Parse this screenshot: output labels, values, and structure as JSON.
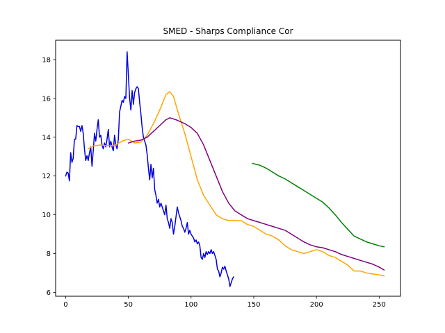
{
  "chart_data": {
    "type": "line",
    "title": "SMED - Sharps Compliance Cor",
    "xlabel": "",
    "ylabel": "",
    "xlim": [
      -8,
      267
    ],
    "ylim": [
      5.8,
      19.0
    ],
    "grid": false,
    "x_ticks": [
      0,
      50,
      100,
      150,
      200,
      250
    ],
    "y_ticks": [
      6,
      8,
      10,
      12,
      14,
      16,
      18
    ],
    "series": [
      {
        "color": "#0000dd",
        "points": [
          [
            0,
            12.0
          ],
          [
            1,
            12.2
          ],
          [
            2,
            12.15
          ],
          [
            3,
            11.75
          ],
          [
            4,
            13.2
          ],
          [
            5,
            12.7
          ],
          [
            6,
            12.9
          ],
          [
            7,
            13.9
          ],
          [
            8,
            13.9
          ],
          [
            9,
            14.6
          ],
          [
            10,
            14.55
          ],
          [
            11,
            14.55
          ],
          [
            12,
            14.3
          ],
          [
            13,
            14.6
          ],
          [
            14,
            14.2
          ],
          [
            15,
            13.4
          ],
          [
            16,
            12.8
          ],
          [
            17,
            13.05
          ],
          [
            18,
            12.8
          ],
          [
            19,
            13.2
          ],
          [
            20,
            13.5
          ],
          [
            21,
            12.5
          ],
          [
            22,
            13.3
          ],
          [
            23,
            14.2
          ],
          [
            24,
            13.8
          ],
          [
            25,
            14.4
          ],
          [
            26,
            14.9
          ],
          [
            27,
            14.0
          ],
          [
            28,
            14.1
          ],
          [
            29,
            13.6
          ],
          [
            30,
            13.4
          ],
          [
            31,
            13.7
          ],
          [
            32,
            13.5
          ],
          [
            33,
            13.9
          ],
          [
            34,
            14.4
          ],
          [
            35,
            13.5
          ],
          [
            36,
            13.8
          ],
          [
            37,
            13.5
          ],
          [
            38,
            13.3
          ],
          [
            39,
            14.1
          ],
          [
            40,
            13.6
          ],
          [
            41,
            13.4
          ],
          [
            42,
            13.9
          ],
          [
            43,
            15.3
          ],
          [
            44,
            15.6
          ],
          [
            45,
            15.9
          ],
          [
            46,
            15.8
          ],
          [
            47,
            16.1
          ],
          [
            48,
            16.0
          ],
          [
            49,
            18.4
          ],
          [
            50,
            17.2
          ],
          [
            51,
            16.0
          ],
          [
            52,
            15.4
          ],
          [
            53,
            16.4
          ],
          [
            54,
            15.7
          ],
          [
            55,
            16.3
          ],
          [
            56,
            16.5
          ],
          [
            57,
            16.6
          ],
          [
            58,
            16.5
          ],
          [
            59,
            15.8
          ],
          [
            60,
            15.2
          ],
          [
            61,
            14.5
          ],
          [
            62,
            14.0
          ],
          [
            63,
            13.8
          ],
          [
            64,
            13.6
          ],
          [
            65,
            13.1
          ],
          [
            66,
            12.4
          ],
          [
            67,
            11.8
          ],
          [
            68,
            12.6
          ],
          [
            69,
            11.9
          ],
          [
            70,
            12.4
          ],
          [
            71,
            11.3
          ],
          [
            72,
            11.0
          ],
          [
            73,
            10.6
          ],
          [
            74,
            10.8
          ],
          [
            75,
            10.4
          ],
          [
            76,
            10.6
          ],
          [
            77,
            10.4
          ],
          [
            78,
            10.2
          ],
          [
            79,
            10.0
          ],
          [
            80,
            10.5
          ],
          [
            81,
            9.8
          ],
          [
            82,
            9.6
          ],
          [
            83,
            9.3
          ],
          [
            84,
            9.8
          ],
          [
            85,
            9.6
          ],
          [
            86,
            9.0
          ],
          [
            87,
            9.4
          ],
          [
            88,
            9.9
          ],
          [
            89,
            10.4
          ],
          [
            90,
            10.1
          ],
          [
            91,
            9.9
          ],
          [
            92,
            9.7
          ],
          [
            93,
            9.4
          ],
          [
            94,
            9.3
          ],
          [
            95,
            9.1
          ],
          [
            96,
            9.3
          ],
          [
            97,
            9.6
          ],
          [
            98,
            9.0
          ],
          [
            99,
            9.2
          ],
          [
            100,
            9.0
          ],
          [
            101,
            8.9
          ],
          [
            102,
            8.8
          ],
          [
            103,
            8.6
          ],
          [
            104,
            8.7
          ],
          [
            105,
            8.5
          ],
          [
            106,
            8.6
          ],
          [
            107,
            8.4
          ],
          [
            108,
            7.8
          ],
          [
            109,
            7.7
          ],
          [
            110,
            8.0
          ],
          [
            111,
            7.8
          ],
          [
            112,
            8.1
          ],
          [
            113,
            7.95
          ],
          [
            114,
            8.1
          ],
          [
            115,
            8.0
          ],
          [
            116,
            8.2
          ],
          [
            117,
            8.0
          ],
          [
            118,
            8.1
          ],
          [
            119,
            7.9
          ],
          [
            120,
            7.7
          ],
          [
            121,
            7.2
          ],
          [
            122,
            7.1
          ],
          [
            123,
            6.8
          ],
          [
            124,
            7.0
          ],
          [
            125,
            7.3
          ],
          [
            126,
            7.2
          ],
          [
            127,
            7.35
          ],
          [
            128,
            7.1
          ],
          [
            129,
            6.9
          ],
          [
            130,
            6.7
          ],
          [
            131,
            6.3
          ],
          [
            132,
            6.5
          ],
          [
            133,
            6.7
          ],
          [
            134,
            6.8
          ]
        ]
      },
      {
        "color": "#ffa500",
        "points": [
          [
            18,
            13.4
          ],
          [
            22,
            13.55
          ],
          [
            28,
            13.6
          ],
          [
            35,
            13.55
          ],
          [
            40,
            13.6
          ],
          [
            45,
            13.8
          ],
          [
            50,
            13.9
          ],
          [
            55,
            13.7
          ],
          [
            60,
            13.75
          ],
          [
            65,
            14.1
          ],
          [
            70,
            14.7
          ],
          [
            75,
            15.4
          ],
          [
            80,
            16.2
          ],
          [
            83,
            16.35
          ],
          [
            86,
            16.1
          ],
          [
            90,
            15.2
          ],
          [
            95,
            14.2
          ],
          [
            100,
            13.0
          ],
          [
            105,
            11.8
          ],
          [
            110,
            11.0
          ],
          [
            115,
            10.5
          ],
          [
            120,
            10.0
          ],
          [
            125,
            9.8
          ],
          [
            130,
            9.7
          ],
          [
            135,
            9.7
          ],
          [
            140,
            9.7
          ],
          [
            145,
            9.5
          ],
          [
            150,
            9.4
          ],
          [
            155,
            9.2
          ],
          [
            160,
            9.0
          ],
          [
            165,
            8.9
          ],
          [
            170,
            8.7
          ],
          [
            175,
            8.4
          ],
          [
            180,
            8.2
          ],
          [
            185,
            8.1
          ],
          [
            190,
            8.0
          ],
          [
            195,
            8.1
          ],
          [
            200,
            8.2
          ],
          [
            205,
            8.1
          ],
          [
            210,
            7.9
          ],
          [
            215,
            7.8
          ],
          [
            220,
            7.6
          ],
          [
            225,
            7.4
          ],
          [
            230,
            7.1
          ],
          [
            235,
            7.1
          ],
          [
            240,
            7.0
          ],
          [
            245,
            6.95
          ],
          [
            250,
            6.9
          ],
          [
            254,
            6.85
          ]
        ]
      },
      {
        "color": "#800080",
        "points": [
          [
            50,
            13.7
          ],
          [
            55,
            13.8
          ],
          [
            60,
            13.85
          ],
          [
            65,
            14.0
          ],
          [
            70,
            14.3
          ],
          [
            75,
            14.6
          ],
          [
            80,
            14.9
          ],
          [
            83,
            15.0
          ],
          [
            88,
            14.9
          ],
          [
            95,
            14.7
          ],
          [
            100,
            14.5
          ],
          [
            105,
            14.2
          ],
          [
            110,
            13.6
          ],
          [
            115,
            12.8
          ],
          [
            120,
            12.0
          ],
          [
            125,
            11.2
          ],
          [
            130,
            10.6
          ],
          [
            135,
            10.2
          ],
          [
            140,
            10.0
          ],
          [
            145,
            9.8
          ],
          [
            150,
            9.7
          ],
          [
            155,
            9.6
          ],
          [
            160,
            9.5
          ],
          [
            165,
            9.4
          ],
          [
            170,
            9.3
          ],
          [
            175,
            9.2
          ],
          [
            180,
            9.0
          ],
          [
            185,
            8.8
          ],
          [
            190,
            8.6
          ],
          [
            195,
            8.45
          ],
          [
            200,
            8.35
          ],
          [
            205,
            8.3
          ],
          [
            210,
            8.2
          ],
          [
            215,
            8.1
          ],
          [
            220,
            7.95
          ],
          [
            225,
            7.85
          ],
          [
            230,
            7.75
          ],
          [
            235,
            7.65
          ],
          [
            240,
            7.55
          ],
          [
            245,
            7.45
          ],
          [
            250,
            7.3
          ],
          [
            254,
            7.15
          ]
        ]
      },
      {
        "color": "#008000",
        "points": [
          [
            149,
            12.65
          ],
          [
            155,
            12.55
          ],
          [
            160,
            12.4
          ],
          [
            165,
            12.2
          ],
          [
            170,
            12.0
          ],
          [
            175,
            11.85
          ],
          [
            180,
            11.65
          ],
          [
            185,
            11.45
          ],
          [
            190,
            11.25
          ],
          [
            195,
            11.05
          ],
          [
            200,
            10.85
          ],
          [
            205,
            10.65
          ],
          [
            210,
            10.35
          ],
          [
            215,
            10.0
          ],
          [
            220,
            9.6
          ],
          [
            225,
            9.25
          ],
          [
            230,
            8.9
          ],
          [
            235,
            8.75
          ],
          [
            240,
            8.6
          ],
          [
            245,
            8.5
          ],
          [
            250,
            8.4
          ],
          [
            254,
            8.35
          ]
        ]
      }
    ]
  }
}
